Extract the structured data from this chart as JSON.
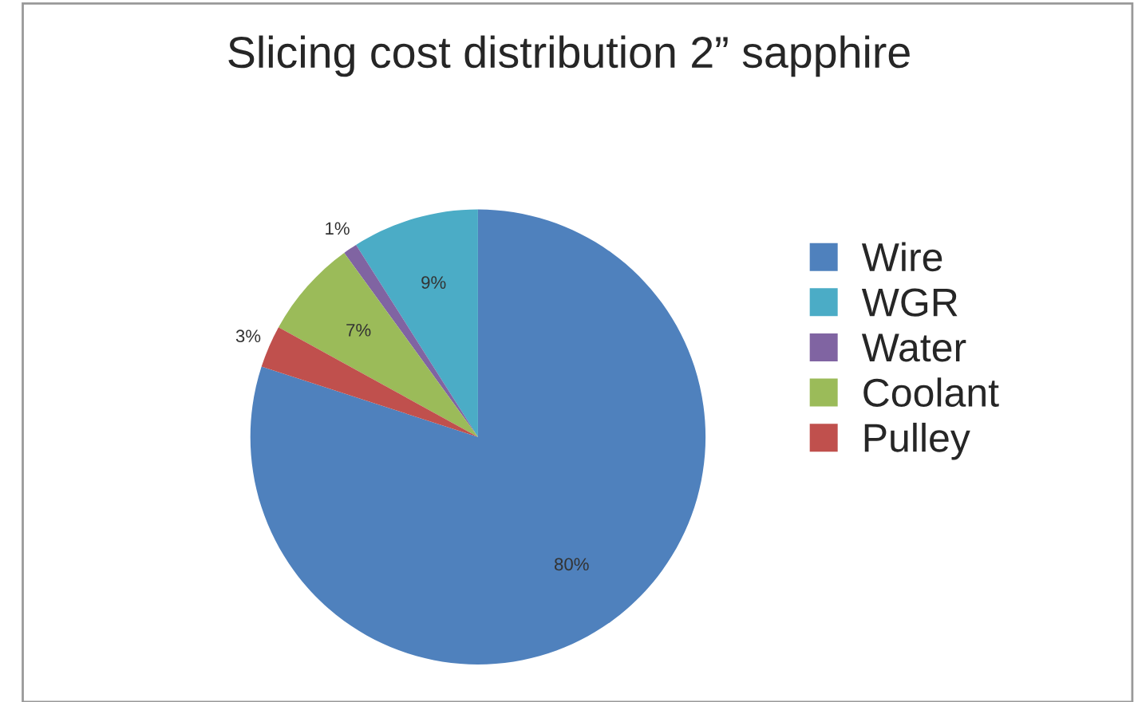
{
  "chart_data": {
    "type": "pie",
    "title": "Slicing cost distribution 2” sapphire",
    "categories": [
      "Wire",
      "WGR",
      "Water",
      "Coolant",
      "Pulley"
    ],
    "values": [
      80,
      9,
      1,
      7,
      3
    ],
    "colors": [
      "#4f81bd",
      "#4bacc6",
      "#8064a2",
      "#9bbb59",
      "#c0504d"
    ],
    "value_labels": [
      "80%",
      "9%",
      "1%",
      "7%",
      "3%"
    ],
    "legend": "right"
  }
}
